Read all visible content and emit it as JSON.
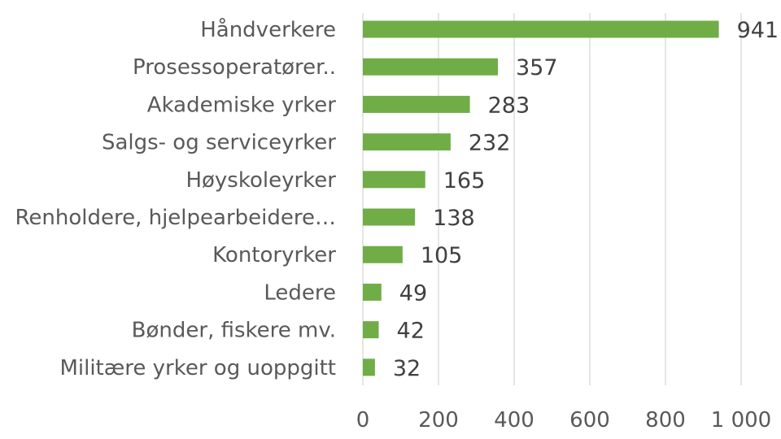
{
  "chart_data": {
    "type": "bar",
    "orientation": "horizontal",
    "categories": [
      "Håndverkere",
      "Prosessoperatører..",
      "Akademiske yrker",
      "Salgs- og serviceyrker",
      "Høyskoleyrker",
      "Renholdere, hjelpearbeidere…",
      "Kontoryrker",
      "Ledere",
      "Bønder, fiskere mv.",
      "Militære yrker og uoppgitt"
    ],
    "values": [
      941,
      357,
      283,
      232,
      165,
      138,
      105,
      49,
      42,
      32
    ],
    "value_labels": [
      "941",
      "357",
      "283",
      "232",
      "165",
      "138",
      "105",
      "49",
      "42",
      "32"
    ],
    "xlim": [
      0,
      1000
    ],
    "xticks": [
      0,
      200,
      400,
      600,
      800,
      1000
    ],
    "xtick_labels": [
      "0",
      "200",
      "400",
      "600",
      "800",
      "1 000"
    ],
    "grid": true,
    "bar_color": "#70ad47",
    "title": "",
    "xlabel": "",
    "ylabel": ""
  }
}
